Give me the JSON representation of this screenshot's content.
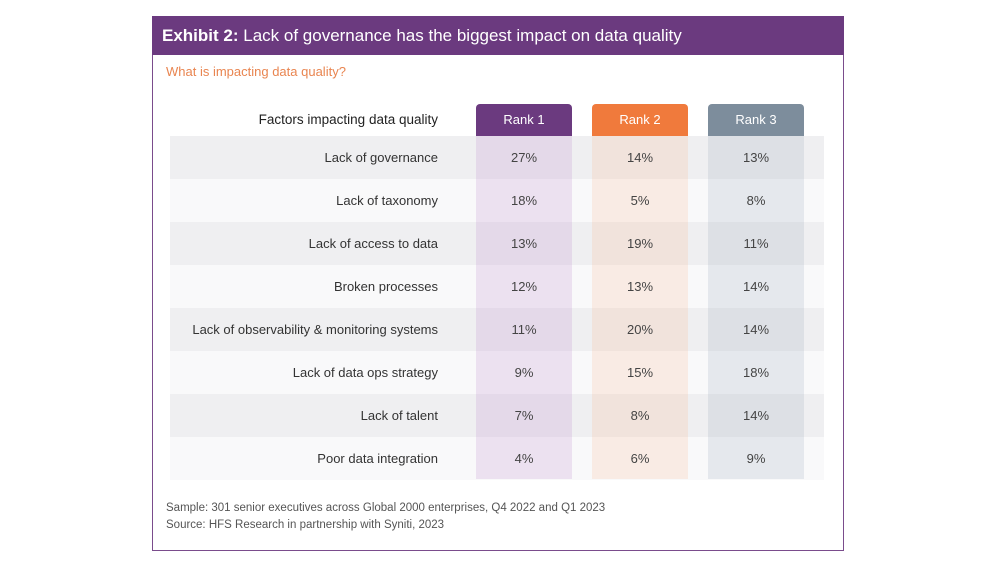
{
  "header": {
    "prefix": "Exhibit 2:",
    "title": "Lack of governance has the biggest impact on data quality"
  },
  "subtitle": "What is impacting data quality?",
  "colors": {
    "purple": "#6b3a7f",
    "orange": "#f07a3c",
    "gray": "#7d8d9c"
  },
  "chart_data": {
    "type": "table",
    "title": "Lack of governance has the biggest impact on data quality",
    "row_header": "Factors impacting data quality",
    "columns": [
      "Rank 1",
      "Rank 2",
      "Rank 3"
    ],
    "rows": [
      {
        "label": "Lack of governance",
        "values": [
          "27%",
          "14%",
          "13%"
        ]
      },
      {
        "label": "Lack of taxonomy",
        "values": [
          "18%",
          "5%",
          "8%"
        ]
      },
      {
        "label": "Lack of access to data",
        "values": [
          "13%",
          "19%",
          "11%"
        ]
      },
      {
        "label": "Broken processes",
        "values": [
          "12%",
          "13%",
          "14%"
        ]
      },
      {
        "label": "Lack of observability & monitoring systems",
        "values": [
          "11%",
          "20%",
          "14%"
        ]
      },
      {
        "label": "Lack of data ops strategy",
        "values": [
          "9%",
          "15%",
          "18%"
        ]
      },
      {
        "label": "Lack of talent",
        "values": [
          "7%",
          "8%",
          "14%"
        ]
      },
      {
        "label": "Poor data integration",
        "values": [
          "4%",
          "6%",
          "9%"
        ]
      }
    ]
  },
  "footer": {
    "sample": "Sample: 301 senior executives across Global 2000 enterprises, Q4 2022 and Q1 2023",
    "source": "Source: HFS Research in partnership with Syniti, 2023"
  }
}
